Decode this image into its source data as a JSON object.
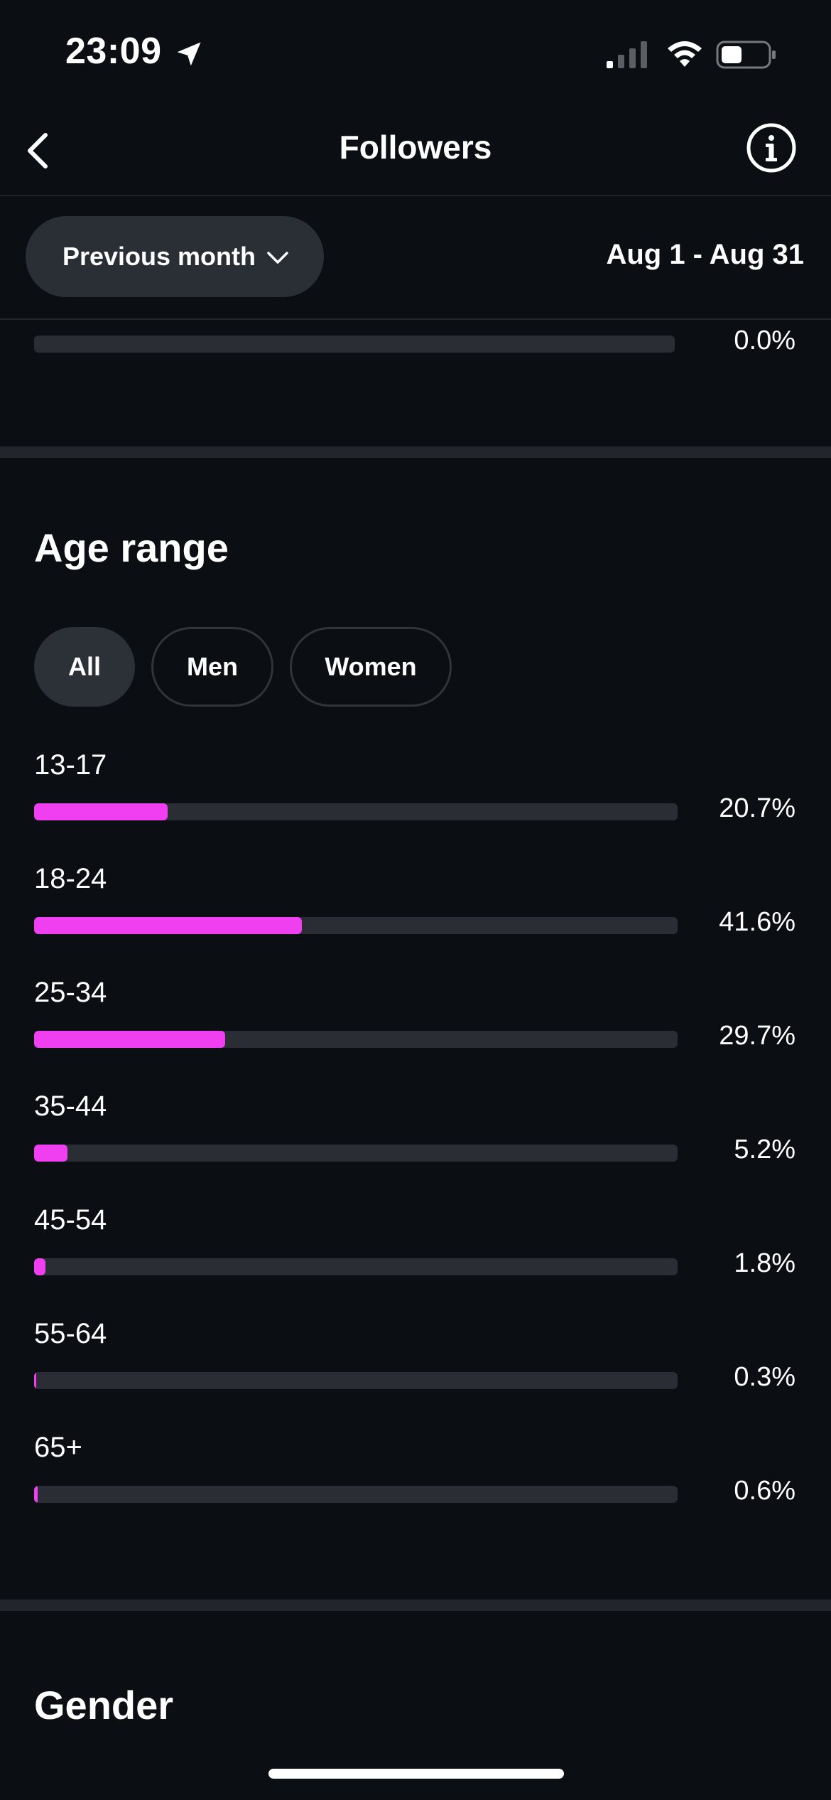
{
  "status": {
    "time": "23:09"
  },
  "nav": {
    "title": "Followers"
  },
  "range": {
    "period_label": "Previous month",
    "date_range": "Aug 1 - Aug 31"
  },
  "previous_item": {
    "percent_label": "0.0%",
    "value": 0.0
  },
  "age_section": {
    "title": "Age range",
    "filters": [
      "All",
      "Men",
      "Women"
    ],
    "selected_filter": "All",
    "accent_color": "#f03ff0",
    "rows": [
      {
        "label": "13-17",
        "value": 20.7,
        "percent_label": "20.7%"
      },
      {
        "label": "18-24",
        "value": 41.6,
        "percent_label": "41.6%"
      },
      {
        "label": "25-34",
        "value": 29.7,
        "percent_label": "29.7%"
      },
      {
        "label": "35-44",
        "value": 5.2,
        "percent_label": "5.2%"
      },
      {
        "label": "45-54",
        "value": 1.8,
        "percent_label": "1.8%"
      },
      {
        "label": "55-64",
        "value": 0.3,
        "percent_label": "0.3%"
      },
      {
        "label": "65+",
        "value": 0.6,
        "percent_label": "0.6%"
      }
    ]
  },
  "gender_section": {
    "title": "Gender"
  }
}
